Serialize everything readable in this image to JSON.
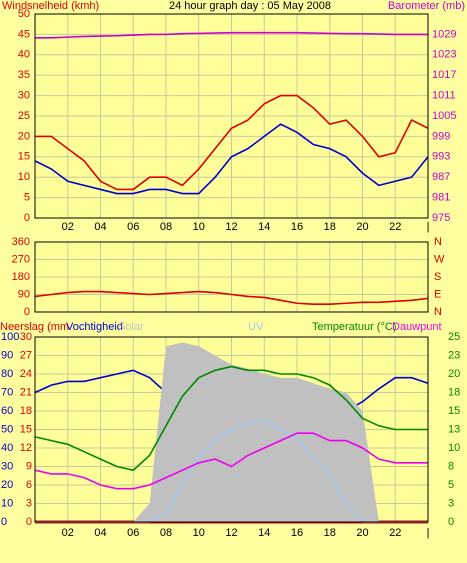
{
  "chart_data": [
    {
      "type": "line",
      "title": "24 hour graph day : 05 May 2008",
      "ylabel": "Windsnelheid (kmh)",
      "y2label": "Barometer (mb)",
      "ycolor": "#dd0000",
      "y2color": "#cc00cc",
      "x": [
        0,
        1,
        2,
        3,
        4,
        5,
        6,
        7,
        8,
        9,
        10,
        11,
        12,
        13,
        14,
        15,
        16,
        17,
        18,
        19,
        20,
        21,
        22,
        23,
        24
      ],
      "xlim": [
        0,
        24
      ],
      "xticks": [
        {
          "value": 2,
          "label": "02"
        },
        {
          "value": 4,
          "label": "04"
        },
        {
          "value": 6,
          "label": "06"
        },
        {
          "value": 8,
          "label": "08"
        },
        {
          "value": 10,
          "label": "10"
        },
        {
          "value": 12,
          "label": "12"
        },
        {
          "value": 14,
          "label": "14"
        },
        {
          "value": 16,
          "label": "16"
        },
        {
          "value": 18,
          "label": "18"
        },
        {
          "value": 20,
          "label": "20"
        },
        {
          "value": 22,
          "label": "22"
        },
        {
          "value": 24,
          "label": "|"
        }
      ],
      "ylim": [
        0,
        50
      ],
      "yticks": [
        0,
        5,
        10,
        15,
        20,
        25,
        30,
        35,
        40,
        45,
        50
      ],
      "y2lim": [
        975,
        1035
      ],
      "y2ticks": [
        975,
        981,
        987,
        993,
        999,
        1005,
        1011,
        1017,
        1023,
        1029
      ],
      "grid": true,
      "series": [
        {
          "color": "#dd0000",
          "values": [
            20,
            20,
            17,
            14,
            9,
            7,
            7,
            10,
            10,
            8,
            12,
            17,
            22,
            24,
            28,
            30,
            30,
            27,
            23,
            24,
            20,
            15,
            16,
            24,
            22
          ]
        },
        {
          "color": "#0000cc",
          "values": [
            14,
            12,
            9,
            8,
            7,
            6,
            6,
            7,
            7,
            6,
            6,
            10,
            15,
            17,
            20,
            23,
            21,
            18,
            17,
            15,
            11,
            8,
            9,
            10,
            15
          ]
        },
        {
          "color": "#cc00cc",
          "axis": "y2",
          "values": [
            1028,
            1028,
            1028.2,
            1028.4,
            1028.5,
            1028.6,
            1028.8,
            1029,
            1029,
            1029.2,
            1029.3,
            1029.4,
            1029.5,
            1029.5,
            1029.5,
            1029.5,
            1029.5,
            1029.4,
            1029.3,
            1029.2,
            1029.2,
            1029.1,
            1029,
            1029,
            1029
          ]
        }
      ]
    },
    {
      "type": "line",
      "ycolor": "#dd0000",
      "y2color": "#dd0000",
      "x": [
        0,
        1,
        2,
        3,
        4,
        5,
        6,
        7,
        8,
        9,
        10,
        11,
        12,
        13,
        14,
        15,
        16,
        17,
        18,
        19,
        20,
        21,
        22,
        23,
        24
      ],
      "xlim": [
        0,
        24
      ],
      "xticks": [
        2,
        4,
        6,
        8,
        10,
        12,
        14,
        16,
        18,
        20,
        22,
        24
      ],
      "ylim": [
        0,
        360
      ],
      "yticks": [
        0,
        90,
        180,
        270,
        360
      ],
      "y2lim": [
        0,
        360
      ],
      "y2ticks": [
        {
          "value": 0,
          "label": "N"
        },
        {
          "value": 90,
          "label": "E"
        },
        {
          "value": 180,
          "label": "S"
        },
        {
          "value": 270,
          "label": "W"
        },
        {
          "value": 360,
          "label": "N"
        }
      ],
      "grid": true,
      "series": [
        {
          "color": "#dd0000",
          "values": [
            80,
            90,
            100,
            105,
            105,
            100,
            95,
            90,
            95,
            100,
            105,
            100,
            90,
            80,
            75,
            60,
            45,
            40,
            40,
            45,
            50,
            50,
            55,
            60,
            70
          ]
        }
      ]
    },
    {
      "type": "line",
      "ycolor": "#0000cc",
      "y2color": "#008800",
      "y3color": "#dd0000",
      "x": [
        0,
        1,
        2,
        3,
        4,
        5,
        6,
        7,
        8,
        9,
        10,
        11,
        12,
        13,
        14,
        15,
        16,
        17,
        18,
        19,
        20,
        21,
        22,
        23,
        24
      ],
      "xlim": [
        0,
        24
      ],
      "xticks": [
        {
          "value": 2,
          "label": "02"
        },
        {
          "value": 4,
          "label": "04"
        },
        {
          "value": 6,
          "label": "06"
        },
        {
          "value": 8,
          "label": "08"
        },
        {
          "value": 10,
          "label": "10"
        },
        {
          "value": 12,
          "label": "12"
        },
        {
          "value": 14,
          "label": "14"
        },
        {
          "value": 16,
          "label": "16"
        },
        {
          "value": 18,
          "label": "18"
        },
        {
          "value": 20,
          "label": "20"
        },
        {
          "value": 22,
          "label": "22"
        },
        {
          "value": 24,
          "label": "|"
        }
      ],
      "ylim": [
        0,
        100
      ],
      "yticks": [
        0,
        10,
        20,
        30,
        40,
        50,
        60,
        70,
        80,
        90,
        100
      ],
      "y2lim": [
        0,
        25
      ],
      "y2ticks": [
        0,
        {
          "value": 2.5,
          "label": "3"
        },
        5,
        {
          "value": 7.5,
          "label": "8"
        },
        10,
        {
          "value": 12.5,
          "label": "13"
        },
        15,
        {
          "value": 17.5,
          "label": "18"
        },
        20,
        {
          "value": 22.5,
          "label": "23"
        },
        25
      ],
      "y3lim": [
        0,
        30
      ],
      "y3ticks": [
        0,
        3,
        6,
        9,
        12,
        15,
        18,
        21,
        24,
        27,
        30
      ],
      "grid": true,
      "series": [
        {
          "name": "Neerslag (mm",
          "color": "#dd0000",
          "axis": "y3",
          "values": [
            0,
            0,
            0,
            0,
            0,
            0,
            0,
            0,
            0,
            0,
            0,
            0,
            0,
            0,
            0,
            0,
            0,
            0,
            0,
            0,
            0,
            0,
            0,
            0,
            0
          ]
        },
        {
          "name": "Vochtigheid",
          "color": "#0000cc",
          "values": [
            70,
            74,
            76,
            76,
            78,
            80,
            82,
            78,
            70,
            62,
            55,
            50,
            45,
            46,
            48,
            52,
            54,
            55,
            56,
            60,
            65,
            72,
            78,
            78,
            75
          ]
        },
        {
          "name": "Solar",
          "color": "#c0c0c0",
          "style": "area",
          "values": [
            0,
            0,
            0,
            0,
            0,
            0,
            0,
            10,
            95,
            97,
            95,
            90,
            85,
            83,
            80,
            78,
            78,
            75,
            72,
            70,
            60,
            0,
            0,
            0,
            0
          ]
        },
        {
          "name": "UV",
          "color": "#a0c8f0",
          "values": [
            0,
            0,
            0,
            0,
            0,
            0,
            0,
            0,
            5,
            20,
            35,
            45,
            50,
            53,
            55,
            50,
            45,
            35,
            25,
            10,
            0,
            0,
            0,
            0,
            0
          ]
        },
        {
          "name": "Temperatuur (°C)",
          "color": "#008800",
          "axis": "y2",
          "values": [
            11.5,
            11,
            10.5,
            9.5,
            8.5,
            7.5,
            7,
            9,
            13,
            17,
            19.5,
            20.5,
            21,
            20.5,
            20.5,
            20,
            20,
            19.5,
            18.5,
            16.5,
            14,
            13,
            12.5,
            12.5,
            12.5
          ]
        },
        {
          "name": "Dauwpunt",
          "color": "#ee00ee",
          "axis": "y2",
          "values": [
            7,
            6.5,
            6.5,
            6,
            5,
            4.5,
            4.5,
            5,
            6,
            7,
            8,
            8.5,
            7.5,
            9,
            10,
            11,
            12,
            12,
            11,
            11,
            10,
            8.5,
            8,
            8,
            8
          ]
        }
      ]
    }
  ]
}
